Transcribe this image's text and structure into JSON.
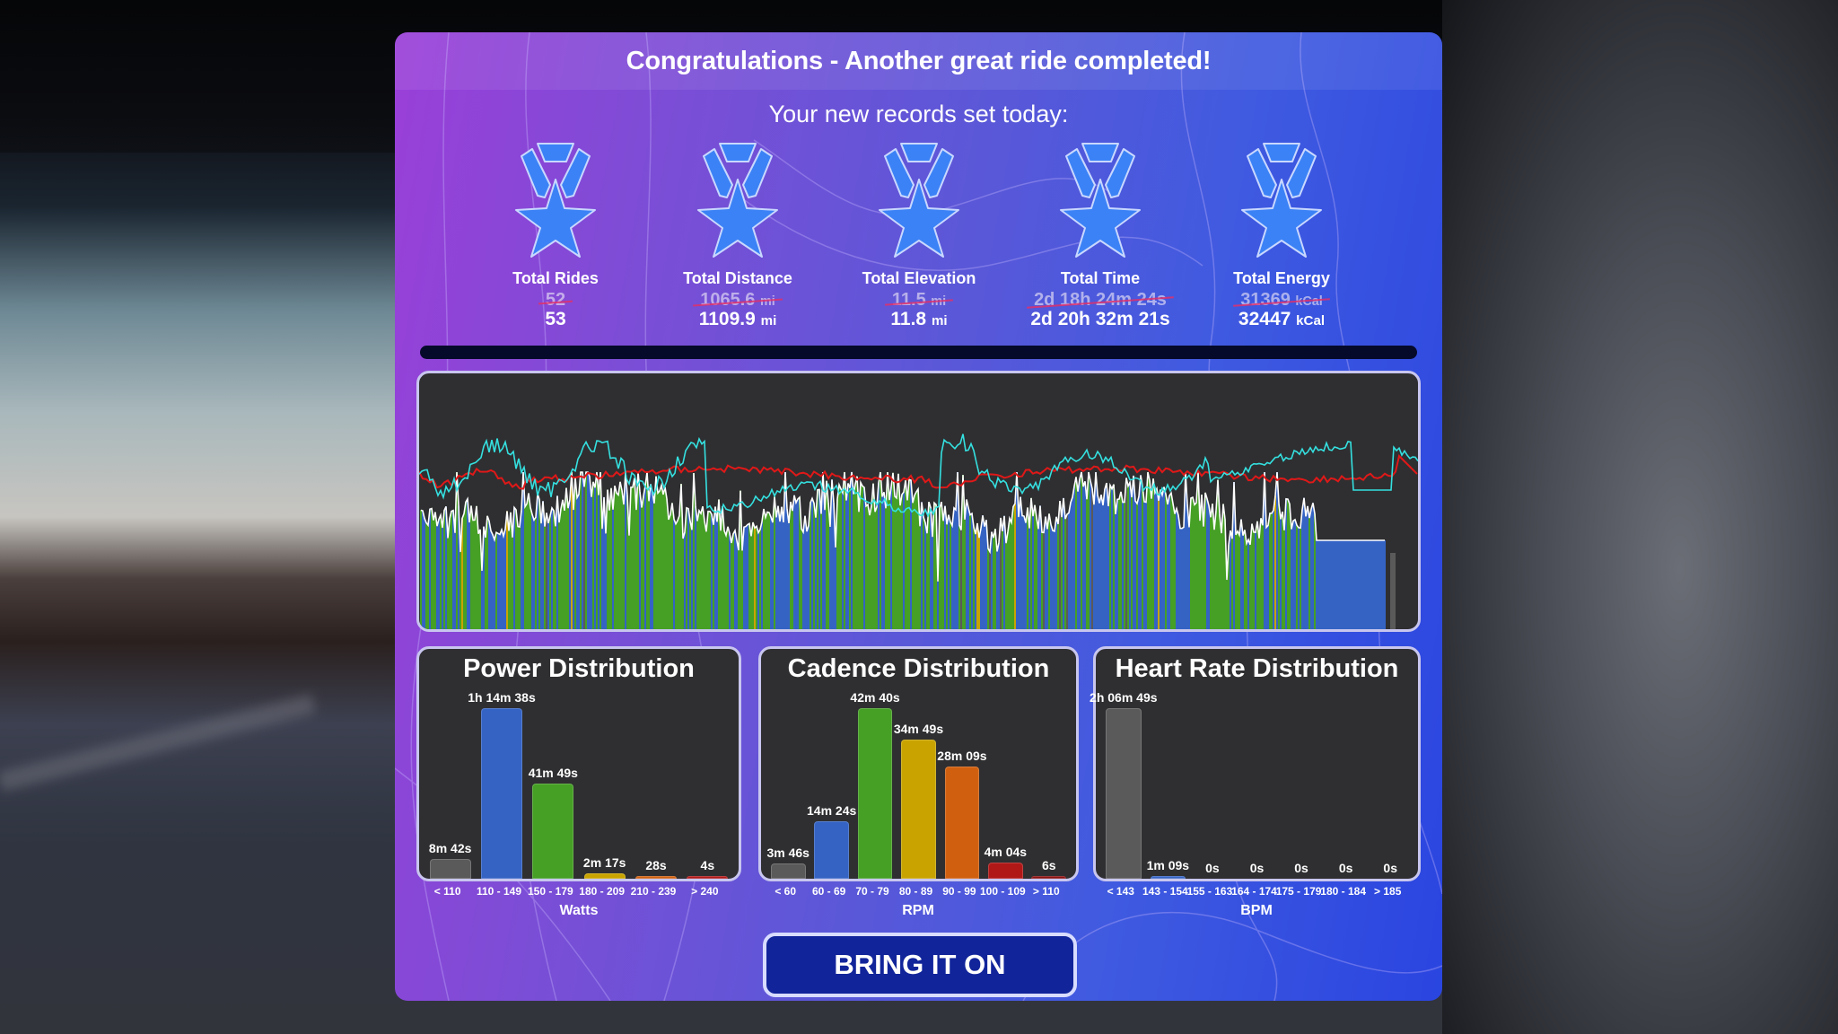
{
  "header": {
    "title": "Congratulations - Another great ride completed!",
    "subtitle": "Your new records set today:"
  },
  "records": [
    {
      "label": "Total Rides",
      "old": "52",
      "old_unit": "",
      "new": "53",
      "new_unit": "",
      "icon": "medal-star-icon"
    },
    {
      "label": "Total Distance",
      "old": "1065.6",
      "old_unit": "mi",
      "new": "1109.9",
      "new_unit": "mi",
      "icon": "medal-star-icon"
    },
    {
      "label": "Total Elevation",
      "old": "11.5",
      "old_unit": "mi",
      "new": "11.8",
      "new_unit": "mi",
      "icon": "medal-star-icon"
    },
    {
      "label": "Total Time",
      "old": "2d 18h 24m 24s",
      "old_unit": "",
      "new": "2d 20h 32m 21s",
      "new_unit": "",
      "icon": "medal-star-icon"
    },
    {
      "label": "Total Energy",
      "old": "31369",
      "old_unit": "kCal",
      "new": "32447",
      "new_unit": "kCal",
      "icon": "medal-star-icon"
    }
  ],
  "ride_graph": {
    "series": [
      {
        "name": "power",
        "color": "#ffffff"
      },
      {
        "name": "heart_rate",
        "color": "#e01818"
      },
      {
        "name": "cadence",
        "color": "#35e0e0"
      }
    ],
    "zone_colors": {
      "gray": "#5a5a5a",
      "blue": "#3463c4",
      "green": "#45a025",
      "yellow": "#c9a400"
    }
  },
  "distributions": {
    "power": {
      "title": "Power Distribution",
      "axis": "Watts",
      "bins": [
        {
          "range": "< 110",
          "value": "8m 42s",
          "seconds": 522,
          "color": "#5a5a5a"
        },
        {
          "range": "110 - 149",
          "value": "1h 14m 38s",
          "seconds": 4478,
          "color": "#3463c4"
        },
        {
          "range": "150 - 179",
          "value": "41m 49s",
          "seconds": 2509,
          "color": "#45a025"
        },
        {
          "range": "180 - 209",
          "value": "2m 17s",
          "seconds": 137,
          "color": "#c9a400"
        },
        {
          "range": "210 - 239",
          "value": "28s",
          "seconds": 28,
          "color": "#d06010"
        },
        {
          "range": "> 240",
          "value": "4s",
          "seconds": 4,
          "color": "#b01818"
        }
      ]
    },
    "cadence": {
      "title": "Cadence Distribution",
      "axis": "RPM",
      "bins": [
        {
          "range": "< 60",
          "value": "3m 46s",
          "seconds": 226,
          "color": "#5a5a5a"
        },
        {
          "range": "60 - 69",
          "value": "14m 24s",
          "seconds": 864,
          "color": "#3463c4"
        },
        {
          "range": "70 - 79",
          "value": "42m 40s",
          "seconds": 2560,
          "color": "#45a025"
        },
        {
          "range": "80 - 89",
          "value": "34m 49s",
          "seconds": 2089,
          "color": "#c9a400"
        },
        {
          "range": "90 - 99",
          "value": "28m 09s",
          "seconds": 1689,
          "color": "#d06010"
        },
        {
          "range": "100 - 109",
          "value": "4m 04s",
          "seconds": 244,
          "color": "#b01818"
        },
        {
          "range": "> 110",
          "value": "6s",
          "seconds": 6,
          "color": "#8a1010"
        }
      ]
    },
    "heart_rate": {
      "title": "Heart Rate Distribution",
      "axis": "BPM",
      "bins": [
        {
          "range": "< 143",
          "value": "2h 06m 49s",
          "seconds": 7609,
          "color": "#5a5a5a"
        },
        {
          "range": "143 - 154",
          "value": "1m 09s",
          "seconds": 69,
          "color": "#3463c4"
        },
        {
          "range": "155 - 163",
          "value": "0s",
          "seconds": 0,
          "color": "#45a025"
        },
        {
          "range": "164 - 174",
          "value": "0s",
          "seconds": 0,
          "color": "#c9a400"
        },
        {
          "range": "175 - 179",
          "value": "0s",
          "seconds": 0,
          "color": "#d06010"
        },
        {
          "range": "180 - 184",
          "value": "0s",
          "seconds": 0,
          "color": "#b01818"
        },
        {
          "range": "> 185",
          "value": "0s",
          "seconds": 0,
          "color": "#8a1010"
        }
      ]
    }
  },
  "cta": {
    "label": "BRING IT ON"
  },
  "chart_data": [
    {
      "type": "bar",
      "title": "Power Distribution",
      "xlabel": "Watts",
      "ylabel": "",
      "categories": [
        "< 110",
        "110 - 149",
        "150 - 179",
        "180 - 209",
        "210 - 239",
        "> 240"
      ],
      "values": [
        522,
        4478,
        2509,
        137,
        28,
        4
      ],
      "labels": [
        "8m 42s",
        "1h 14m 38s",
        "41m 49s",
        "2m 17s",
        "28s",
        "4s"
      ]
    },
    {
      "type": "bar",
      "title": "Cadence Distribution",
      "xlabel": "RPM",
      "ylabel": "",
      "categories": [
        "< 60",
        "60 - 69",
        "70 - 79",
        "80 - 89",
        "90 - 99",
        "100 - 109",
        "> 110"
      ],
      "values": [
        226,
        864,
        2560,
        2089,
        1689,
        244,
        6
      ],
      "labels": [
        "3m 46s",
        "14m 24s",
        "42m 40s",
        "34m 49s",
        "28m 09s",
        "4m 04s",
        "6s"
      ]
    },
    {
      "type": "bar",
      "title": "Heart Rate Distribution",
      "xlabel": "BPM",
      "ylabel": "",
      "categories": [
        "< 143",
        "143 - 154",
        "155 - 163",
        "164 - 174",
        "175 - 179",
        "180 - 184",
        "> 185"
      ],
      "values": [
        7609,
        69,
        0,
        0,
        0,
        0,
        0
      ],
      "labels": [
        "2h 06m 49s",
        "1m 09s",
        "0s",
        "0s",
        "0s",
        "0s",
        "0s"
      ]
    }
  ]
}
